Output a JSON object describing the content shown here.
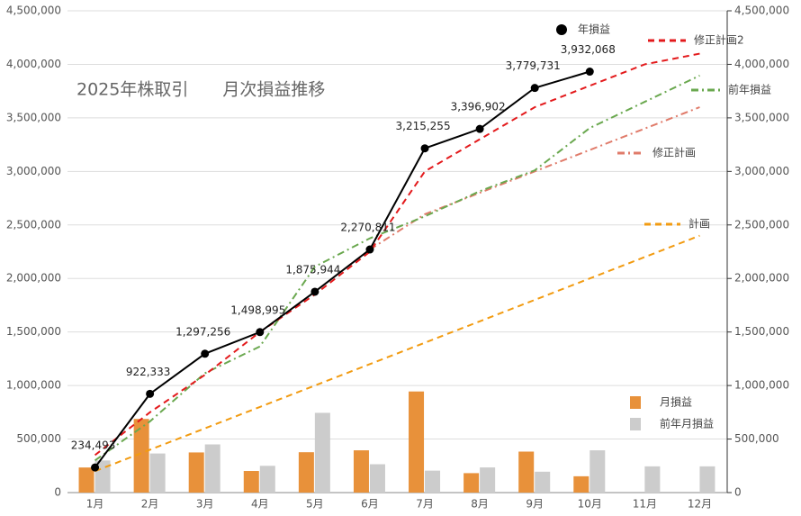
{
  "chart_data": {
    "type": "combo",
    "title": "2025年株取引　　月次損益推移",
    "categories": [
      "1月",
      "2月",
      "3月",
      "4月",
      "5月",
      "6月",
      "7月",
      "8月",
      "9月",
      "10月",
      "11月",
      "12月"
    ],
    "ylim": [
      0,
      4500000
    ],
    "yticks": [
      0,
      {
        "value": 500000,
        "label": "500,000"
      },
      {
        "value": 1000000,
        "label": "1,000,000"
      },
      {
        "value": 1500000,
        "label": "1,500,000"
      },
      {
        "value": 2000000,
        "label": "2,000,000"
      },
      {
        "value": 2500000,
        "label": "2,500,000"
      },
      {
        "value": 3000000,
        "label": "3,000,000"
      },
      {
        "value": 3500000,
        "label": "3,500,000"
      },
      {
        "value": 4000000,
        "label": "4,000,000"
      },
      {
        "value": 4500000,
        "label": "4,500,000"
      }
    ],
    "y2lim": [
      0,
      4500000
    ],
    "y2ticks": [
      0,
      {
        "value": 500000,
        "label": "500,000"
      },
      {
        "value": 1000000,
        "label": "1,000,000"
      },
      {
        "value": 1500000,
        "label": "1,500,000"
      },
      {
        "value": 2000000,
        "label": "2,000,000"
      },
      {
        "value": 2500000,
        "label": "2,500,000"
      },
      {
        "value": 3000000,
        "label": "3,000,000"
      },
      {
        "value": 3500000,
        "label": "3,500,000"
      },
      {
        "value": 4000000,
        "label": "4,000,000"
      },
      {
        "value": 4500000,
        "label": "4,500,000"
      }
    ],
    "grid": true,
    "series": [
      {
        "name": "年損益",
        "kind": "line",
        "style": "solid",
        "markers": true,
        "color": "#000000",
        "values": [
          234493,
          922333,
          1297256,
          1498995,
          1875944,
          2270811,
          3215255,
          3396902,
          3779731,
          3932068,
          null,
          null
        ],
        "value_labels": [
          "234,493",
          "922,333",
          "1,297,256",
          "1,498,995",
          "1,875,944",
          "2,270,811",
          "3,215,255",
          "3,396,902",
          "3,779,731",
          "3,932,068",
          null,
          null
        ]
      },
      {
        "name": "修正計画2",
        "kind": "line",
        "style": "dashed",
        "color": "#e31a1c",
        "values": [
          350000,
          750000,
          1100000,
          1500000,
          1850000,
          2250000,
          3000000,
          3300000,
          3600000,
          3800000,
          4000000,
          4100000
        ]
      },
      {
        "name": "前年損益",
        "kind": "line",
        "style": "dashdot",
        "color": "#6aa84f",
        "values": [
          300000,
          665000,
          1115000,
          1365000,
          2110000,
          2375000,
          2580000,
          2815000,
          3010000,
          3405000,
          3650000,
          3895000
        ]
      },
      {
        "name": "修正計画",
        "kind": "line",
        "style": "dashdot",
        "color": "#e07b6a",
        "values": [
          null,
          null,
          null,
          null,
          null,
          2270000,
          2600000,
          2800000,
          3000000,
          3200000,
          3400000,
          3600000
        ]
      },
      {
        "name": "計画",
        "kind": "line",
        "style": "dashed",
        "color": "#f29b11",
        "values": [
          200000,
          400000,
          600000,
          800000,
          1000000,
          1200000,
          1400000,
          1600000,
          1800000,
          2000000,
          2200000,
          2400000
        ]
      },
      {
        "name": "月損益",
        "kind": "bar",
        "color": "#e8913a",
        "values": [
          234493,
          687840,
          374923,
          201739,
          376949,
          394867,
          944444,
          181647,
          382829,
          152337,
          null,
          null
        ]
      },
      {
        "name": "前年月損益",
        "kind": "bar",
        "color": "#cccccc",
        "values": [
          300000,
          365000,
          450000,
          250000,
          745000,
          265000,
          205000,
          235000,
          195000,
          395000,
          245000,
          245000
        ]
      }
    ]
  }
}
